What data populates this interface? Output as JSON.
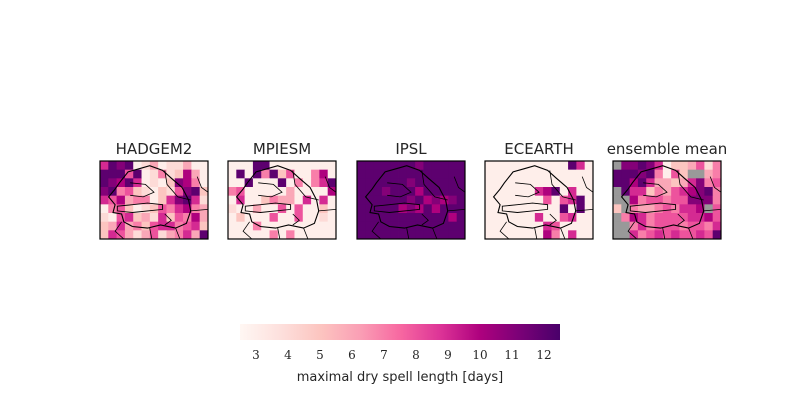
{
  "chart_data": {
    "type": "heatmap",
    "grid": {
      "rows": 9,
      "cols": 13
    },
    "missing_color": "#999999",
    "panels": [
      {
        "title": "HADGEM2",
        "values": [
          [
            9,
            12,
            11,
            12,
            3,
            4,
            6,
            3,
            4,
            4,
            6,
            3,
            3
          ],
          [
            12,
            12,
            12,
            8,
            12,
            3,
            4,
            7,
            4,
            5,
            10,
            6,
            3
          ],
          [
            12,
            11,
            10,
            12,
            9,
            3,
            4,
            3,
            5,
            11,
            10,
            7,
            3
          ],
          [
            11,
            12,
            7,
            8,
            5,
            4,
            3,
            5,
            4,
            8,
            11,
            12,
            5
          ],
          [
            9,
            8,
            10,
            6,
            7,
            7,
            3,
            5,
            9,
            11,
            12,
            9,
            4
          ],
          [
            3,
            7,
            8,
            5,
            3,
            4,
            5,
            8,
            7,
            9,
            10,
            7,
            6
          ],
          [
            4,
            3,
            8,
            9,
            5,
            6,
            4,
            9,
            5,
            8,
            7,
            10,
            6
          ],
          [
            5,
            6,
            9,
            6,
            7,
            5,
            8,
            9,
            9,
            7,
            8,
            9,
            5
          ],
          [
            5,
            9,
            8,
            6,
            4,
            6,
            8,
            4,
            6,
            7,
            9,
            6,
            12
          ]
        ]
      },
      {
        "title": "MPIESM",
        "values": [
          [
            3,
            3,
            3,
            12,
            12,
            3,
            3,
            3,
            3,
            3,
            3,
            3,
            3
          ],
          [
            3,
            12,
            3,
            12,
            7,
            12,
            5,
            8,
            3,
            3,
            7,
            10,
            3
          ],
          [
            3,
            3,
            12,
            3,
            3,
            3,
            12,
            3,
            7,
            3,
            7,
            9,
            12
          ],
          [
            7,
            8,
            3,
            3,
            3,
            3,
            3,
            6,
            3,
            3,
            3,
            3,
            10
          ],
          [
            3,
            9,
            3,
            3,
            5,
            7,
            6,
            6,
            3,
            9,
            3,
            9,
            3
          ],
          [
            4,
            3,
            3,
            6,
            3,
            3,
            8,
            3,
            8,
            3,
            3,
            5,
            3
          ],
          [
            3,
            5,
            3,
            3,
            3,
            8,
            3,
            3,
            8,
            3,
            3,
            4,
            3
          ],
          [
            3,
            3,
            3,
            7,
            3,
            3,
            3,
            3,
            3,
            3,
            3,
            3,
            3
          ],
          [
            3,
            3,
            3,
            3,
            3,
            7,
            3,
            7,
            3,
            3,
            3,
            3,
            3
          ]
        ]
      },
      {
        "title": "IPSL",
        "values": [
          [
            12,
            12,
            12,
            12,
            12,
            12,
            12,
            11,
            12,
            12,
            12,
            12,
            12
          ],
          [
            12,
            12,
            12,
            12,
            12,
            12,
            12,
            12,
            12,
            12,
            12,
            12,
            12
          ],
          [
            12,
            12,
            12,
            12,
            12,
            12,
            11,
            12,
            12,
            12,
            12,
            12,
            12
          ],
          [
            12,
            12,
            12,
            11,
            12,
            12,
            12,
            10,
            12,
            12,
            12,
            12,
            12
          ],
          [
            12,
            12,
            12,
            12,
            12,
            12,
            11,
            12,
            10,
            11,
            10,
            11,
            12
          ],
          [
            12,
            12,
            12,
            12,
            12,
            10,
            11,
            10,
            12,
            10,
            12,
            12,
            12
          ],
          [
            12,
            12,
            12,
            12,
            12,
            12,
            12,
            12,
            12,
            12,
            12,
            10,
            12
          ],
          [
            12,
            12,
            12,
            12,
            12,
            12,
            12,
            12,
            12,
            12,
            12,
            12,
            12
          ],
          [
            12,
            12,
            12,
            12,
            12,
            12,
            12,
            12,
            12,
            12,
            12,
            12,
            12
          ]
        ]
      },
      {
        "title": "ECEARTH",
        "values": [
          [
            3,
            3,
            3,
            3,
            3,
            3,
            3,
            3,
            3,
            3,
            12,
            9,
            3
          ],
          [
            3,
            3,
            3,
            3,
            3,
            3,
            3,
            3,
            3,
            3,
            3,
            3,
            3
          ],
          [
            3,
            3,
            3,
            3,
            3,
            3,
            3,
            3,
            3,
            3,
            3,
            3,
            3
          ],
          [
            3,
            3,
            3,
            3,
            3,
            3,
            9,
            10,
            12,
            3,
            9,
            3,
            3
          ],
          [
            3,
            3,
            3,
            3,
            3,
            3,
            3,
            8,
            3,
            8,
            9,
            12,
            3
          ],
          [
            3,
            3,
            3,
            3,
            3,
            3,
            3,
            3,
            3,
            12,
            3,
            12,
            3
          ],
          [
            3,
            3,
            3,
            3,
            3,
            3,
            9,
            3,
            3,
            8,
            9,
            3,
            3
          ],
          [
            3,
            3,
            3,
            3,
            3,
            3,
            3,
            9,
            8,
            3,
            3,
            3,
            3
          ],
          [
            3,
            3,
            3,
            3,
            3,
            3,
            3,
            10,
            7,
            3,
            9,
            3,
            3
          ]
        ]
      },
      {
        "title": "ensemble mean",
        "values": [
          [
            null,
            11,
            11,
            12,
            11,
            9,
            3,
            5,
            5,
            6,
            8,
            4,
            7
          ],
          [
            12,
            12,
            12,
            11,
            12,
            7,
            3,
            8,
            5,
            null,
            null,
            6,
            7
          ],
          [
            12,
            12,
            10,
            12,
            9,
            6,
            6,
            5,
            6,
            9,
            11,
            7,
            8
          ],
          [
            null,
            12,
            9,
            9,
            5,
            7,
            6,
            8,
            9,
            10,
            11,
            12,
            7
          ],
          [
            null,
            null,
            10,
            7,
            8,
            8,
            7,
            8,
            8,
            11,
            11,
            11,
            7
          ],
          [
            5,
            null,
            7,
            6,
            6,
            7,
            8,
            7,
            9,
            9,
            10,
            null,
            8
          ],
          [
            null,
            7,
            10,
            9,
            7,
            8,
            8,
            8,
            8,
            9,
            9,
            10,
            8
          ],
          [
            null,
            null,
            7,
            9,
            7,
            8,
            8,
            8,
            7,
            8,
            8,
            7,
            9
          ],
          [
            null,
            null,
            9,
            7,
            8,
            9,
            8,
            9,
            8,
            8,
            9,
            8,
            12
          ]
        ]
      }
    ],
    "colorbar": {
      "label": "maximal dry spell length [days]",
      "range": [
        2.5,
        12.5
      ],
      "ticks": [
        3,
        4,
        5,
        6,
        7,
        8,
        9,
        10,
        11,
        12
      ],
      "colormap_stops": [
        "#fff7f3",
        "#fde0dd",
        "#fcc5c0",
        "#fa9fb5",
        "#f768a1",
        "#dd3497",
        "#ae017e",
        "#7a0177",
        "#49006a"
      ]
    }
  }
}
